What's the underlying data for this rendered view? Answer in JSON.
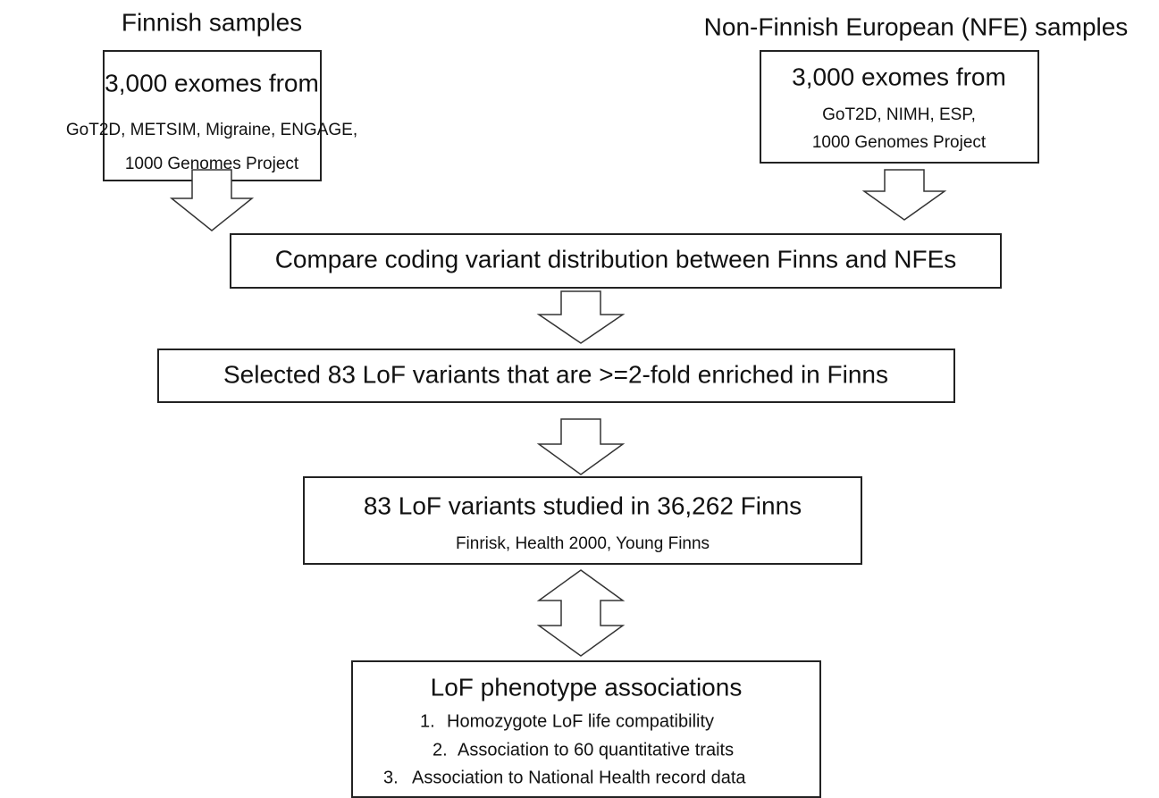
{
  "columns": [
    {
      "title": "Finnish samples",
      "box": {
        "heading": "3,000 exomes from",
        "lines": [
          "GoT2D, METSIM, Migraine, ENGAGE,",
          "1000 Genomes Project"
        ]
      }
    },
    {
      "title": "Non-Finnish European (NFE) samples",
      "box": {
        "heading": "3,000 exomes from",
        "lines": [
          "GoT2D, NIMH, ESP,",
          "1000 Genomes Project"
        ]
      }
    }
  ],
  "steps": [
    {
      "text": "Compare coding variant distribution between Finns and NFEs"
    },
    {
      "text": "Selected 83 LoF variants that are >=2-fold enriched in Finns"
    },
    {
      "heading": "83 LoF variants studied in 36,262 Finns",
      "lines": [
        "Finrisk, Health 2000, Young Finns"
      ]
    },
    {
      "heading": "LoF phenotype associations",
      "items": [
        {
          "number": "1.",
          "text": "Homozygote LoF life compatibility"
        },
        {
          "number": "2.",
          "text": "Association to 60 quantitative traits"
        },
        {
          "number": "3.",
          "text": "Association to National Health record data"
        }
      ]
    }
  ]
}
